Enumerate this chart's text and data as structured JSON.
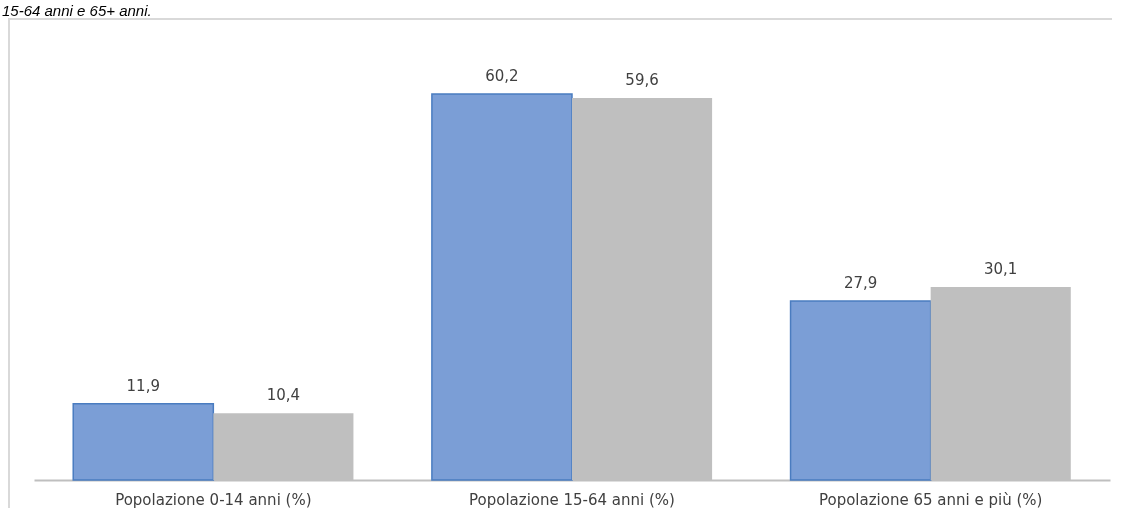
{
  "chart_data": {
    "type": "bar",
    "title": "15-64 anni e 65+ anni.",
    "categories": [
      "Popolazione 0-14 anni (%)",
      "Popolazione 15-64 anni (%)",
      "Popolazione 65 anni e più (%)"
    ],
    "series": [
      {
        "color": "#7b9ed6",
        "values": [
          11.9,
          60.2,
          27.9
        ],
        "value_labels": [
          "11,9",
          "60,2",
          "27,9"
        ]
      },
      {
        "color": "#bfbfbf",
        "values": [
          10.4,
          59.6,
          30.1
        ],
        "value_labels": [
          "10,4",
          "59,6",
          "30,1"
        ]
      }
    ]
  }
}
